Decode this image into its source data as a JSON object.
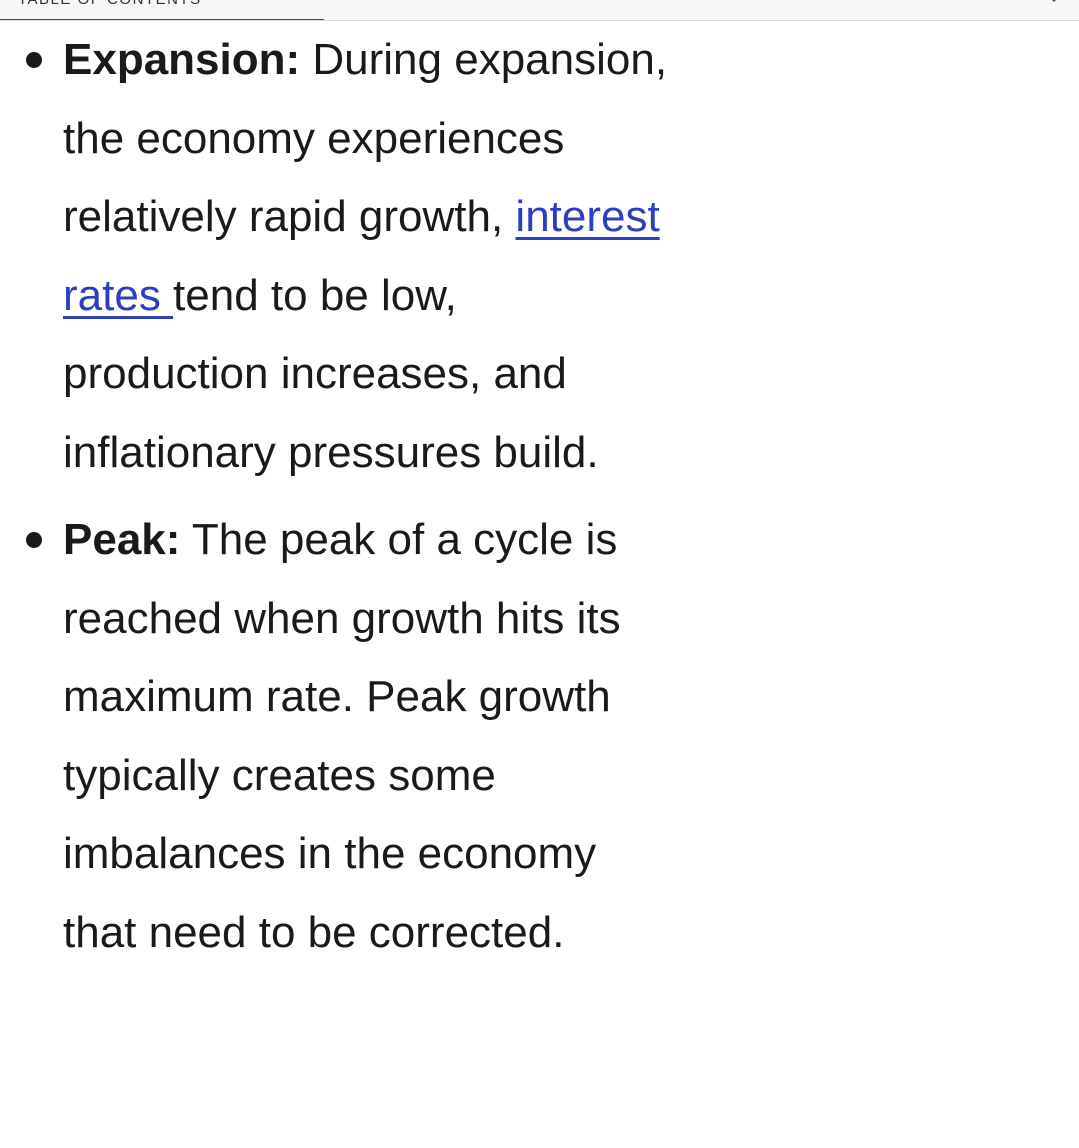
{
  "toc": {
    "label": "TABLE OF CONTENTS",
    "progress_fraction": 0.3,
    "toggle_icon": "chevron-down-icon"
  },
  "colors": {
    "link": "#2b3fc2",
    "progress": "#2b46c9",
    "text": "#1a1a1a"
  },
  "items": [
    {
      "term": "Expansion:",
      "text_before_link": " During expansion, the economy experiences relatively rapid growth, ",
      "link_text": "interest rates ",
      "text_after_link": "tend to be low, production increases, and inflationary pressures build."
    },
    {
      "term": "Peak:",
      "text": " The peak of a cycle is reached when growth hits its maximum rate. Peak growth typically creates some imbalances in the economy that need to be corrected."
    }
  ]
}
